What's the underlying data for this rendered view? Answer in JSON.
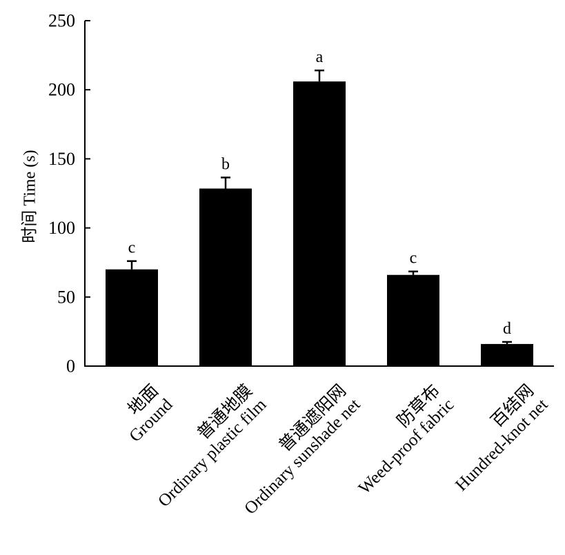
{
  "chart_data": {
    "type": "bar",
    "ylabel": "时间 Time (s)",
    "xlabel": "",
    "ylim": [
      0,
      250
    ],
    "yticks": [
      0,
      50,
      100,
      150,
      200,
      250
    ],
    "grid": false,
    "bar_color": "#000000",
    "categories": [
      {
        "zh": "地面",
        "en": "Ground"
      },
      {
        "zh": "普通地膜",
        "en": "Ordinary plastic film"
      },
      {
        "zh": "普通遮阳网",
        "en": "Ordinary sunshade net"
      },
      {
        "zh": "防草布",
        "en": "Weed-proof fabric"
      },
      {
        "zh": "百结网",
        "en": "Hundred-knot net"
      }
    ],
    "values": [
      70,
      128.5,
      206,
      66,
      16
    ],
    "errors": [
      6,
      8,
      8,
      2.5,
      1.5
    ],
    "significance": [
      "c",
      "b",
      "a",
      "c",
      "d"
    ]
  }
}
